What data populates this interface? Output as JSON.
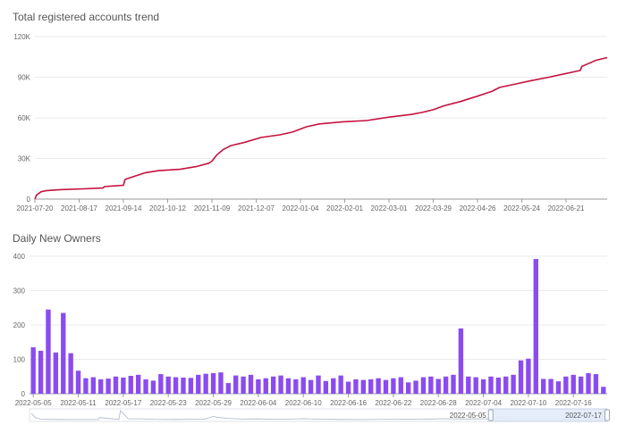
{
  "colors": {
    "line": "#c4123f",
    "bar": "#8a4cf0",
    "slider_fill": "#e2ebfa",
    "slider_border": "#c7d2e6",
    "overview": "#a8b5c8"
  },
  "chart_data": [
    {
      "type": "line",
      "title": "Total registered accounts trend",
      "x_ticks": [
        "2021-07-20",
        "2021-08-17",
        "2021-09-14",
        "2021-10-12",
        "2021-11-09",
        "2021-12-07",
        "2022-01-04",
        "2022-02-01",
        "2022-03-01",
        "2022-03-29",
        "2022-04-26",
        "2022-05-24",
        "2022-06-21"
      ],
      "y_ticks": [
        "0",
        "30K",
        "60K",
        "90K",
        "120K"
      ],
      "ylim": [
        0,
        120000
      ],
      "xlim": [
        "2021-07-20",
        "2022-07-17"
      ],
      "grid": true,
      "series": [
        {
          "points": [
            [
              "2021-07-20",
              0
            ],
            [
              "2021-07-21",
              3000
            ],
            [
              "2021-07-24",
              5500
            ],
            [
              "2021-07-27",
              6200
            ],
            [
              "2021-08-05",
              7000
            ],
            [
              "2021-08-20",
              7600
            ],
            [
              "2021-09-01",
              8200
            ],
            [
              "2021-09-02",
              9200
            ],
            [
              "2021-09-14",
              10200
            ],
            [
              "2021-09-15",
              14500
            ],
            [
              "2021-09-20",
              16500
            ],
            [
              "2021-09-28",
              19500
            ],
            [
              "2021-10-06",
              21000
            ],
            [
              "2021-10-20",
              22000
            ],
            [
              "2021-10-30",
              24000
            ],
            [
              "2021-11-07",
              26500
            ],
            [
              "2021-11-09",
              28000
            ],
            [
              "2021-11-12",
              32500
            ],
            [
              "2021-11-16",
              36500
            ],
            [
              "2021-11-21",
              39500
            ],
            [
              "2021-11-30",
              42000
            ],
            [
              "2021-12-10",
              45500
            ],
            [
              "2021-12-22",
              47500
            ],
            [
              "2021-12-30",
              49500
            ],
            [
              "2022-01-08",
              53500
            ],
            [
              "2022-01-16",
              55500
            ],
            [
              "2022-01-30",
              57000
            ],
            [
              "2022-02-15",
              58000
            ],
            [
              "2022-03-01",
              60500
            ],
            [
              "2022-03-15",
              62500
            ],
            [
              "2022-03-22",
              64000
            ],
            [
              "2022-03-29",
              66000
            ],
            [
              "2022-04-05",
              69000
            ],
            [
              "2022-04-15",
              72000
            ],
            [
              "2022-04-26",
              76000
            ],
            [
              "2022-05-05",
              79500
            ],
            [
              "2022-05-10",
              82500
            ],
            [
              "2022-05-20",
              85000
            ],
            [
              "2022-05-30",
              87500
            ],
            [
              "2022-06-10",
              90000
            ],
            [
              "2022-06-20",
              92500
            ],
            [
              "2022-06-30",
              95000
            ],
            [
              "2022-07-01",
              98000
            ],
            [
              "2022-07-05",
              100000
            ],
            [
              "2022-07-10",
              102500
            ],
            [
              "2022-07-17",
              104500
            ]
          ]
        }
      ]
    },
    {
      "type": "bar",
      "title": "Daily New Owners",
      "x_ticks": [
        "2022-05-05",
        "2022-05-11",
        "2022-05-17",
        "2022-05-23",
        "2022-05-29",
        "2022-06-04",
        "2022-06-10",
        "2022-06-16",
        "2022-06-22",
        "2022-06-28",
        "2022-07-04",
        "2022-07-10",
        "2022-07-16"
      ],
      "y_ticks": [
        "0",
        "100",
        "200",
        "300",
        "400"
      ],
      "ylim": [
        0,
        400
      ],
      "grid": true,
      "values": [
        135,
        125,
        245,
        120,
        235,
        118,
        67,
        45,
        48,
        42,
        44,
        50,
        47,
        52,
        55,
        42,
        38,
        57,
        50,
        48,
        47,
        46,
        55,
        58,
        60,
        62,
        31,
        53,
        50,
        55,
        42,
        45,
        50,
        53,
        45,
        42,
        48,
        40,
        53,
        37,
        45,
        53,
        35,
        42,
        40,
        42,
        45,
        40,
        45,
        48,
        33,
        38,
        48,
        50,
        43,
        50,
        55,
        190,
        50,
        48,
        42,
        50,
        47,
        50,
        55,
        97,
        102,
        392,
        43,
        43,
        36,
        50,
        55,
        50,
        60,
        57,
        20
      ],
      "data_zoom": {
        "start": "2022-05-05",
        "end": "2022-07-17",
        "start_label": "2022-05-05",
        "end_label": "2022-07-17"
      }
    }
  ]
}
